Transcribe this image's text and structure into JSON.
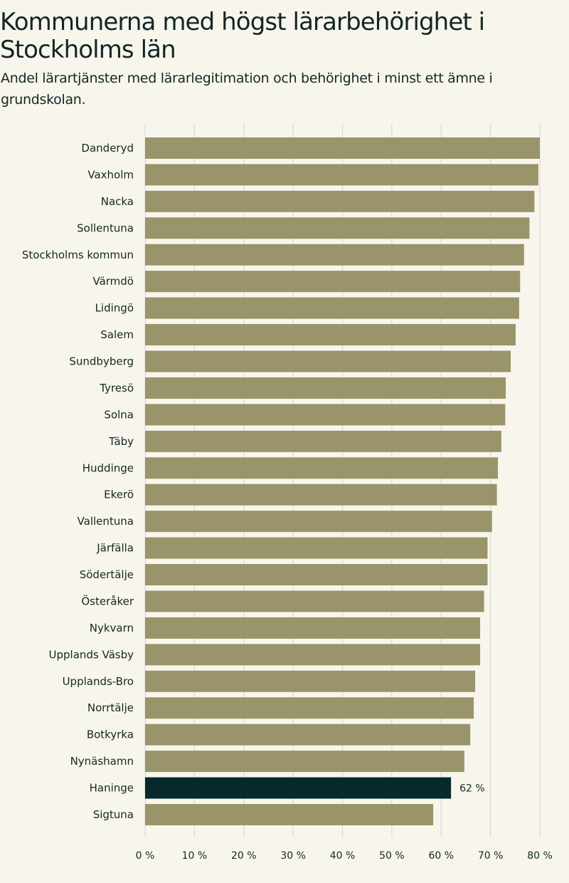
{
  "header": {
    "title": "Kommunerna med högst lärarbehörighet i Stockholms län",
    "subtitle": "Andel lärartjänster med lärarlegitimation och behörighet i minst ett ämne i grundskolan."
  },
  "colors": {
    "bar": "#99946a",
    "highlight": "#062a2b",
    "grid": "#dcdad0",
    "background": "#f8f6ec",
    "text": "#122626"
  },
  "chart_data": {
    "type": "bar",
    "orientation": "horizontal",
    "title": "Kommunerna med högst lärarbehörighet i Stockholms län",
    "subtitle": "Andel lärartjänster med lärarlegitimation och behörighet i minst ett ämne i grundskolan.",
    "xlabel": "",
    "ylabel": "",
    "xlim": [
      0,
      80
    ],
    "ticks": [
      0,
      10,
      20,
      30,
      40,
      50,
      60,
      70,
      80
    ],
    "tick_labels": [
      "0 %",
      "10 %",
      "20 %",
      "30 %",
      "40 %",
      "50 %",
      "60 %",
      "70 %",
      "80 %"
    ],
    "grid": true,
    "categories": [
      "Danderyd",
      "Vaxholm",
      "Nacka",
      "Sollentuna",
      "Stockholms kommun",
      "Värmdö",
      "Lidingö",
      "Salem",
      "Sundbyberg",
      "Tyresö",
      "Solna",
      "Täby",
      "Huddinge",
      "Ekerö",
      "Vallentuna",
      "Järfälla",
      "Södertälje",
      "Österåker",
      "Nykvarn",
      "Upplands Väsby",
      "Upplands-Bro",
      "Norrtälje",
      "Botkyrka",
      "Nynäshamn",
      "Haninge",
      "Sigtuna"
    ],
    "values": [
      80.0,
      79.7,
      78.9,
      77.9,
      76.8,
      76.0,
      75.8,
      75.1,
      74.1,
      73.1,
      73.0,
      72.2,
      71.5,
      71.3,
      70.3,
      69.4,
      69.4,
      68.7,
      67.9,
      67.9,
      66.9,
      66.6,
      65.9,
      64.7,
      62.0,
      58.4
    ],
    "highlight": "Haninge",
    "annotations": [
      {
        "category": "Haninge",
        "text": "62 %"
      }
    ]
  }
}
